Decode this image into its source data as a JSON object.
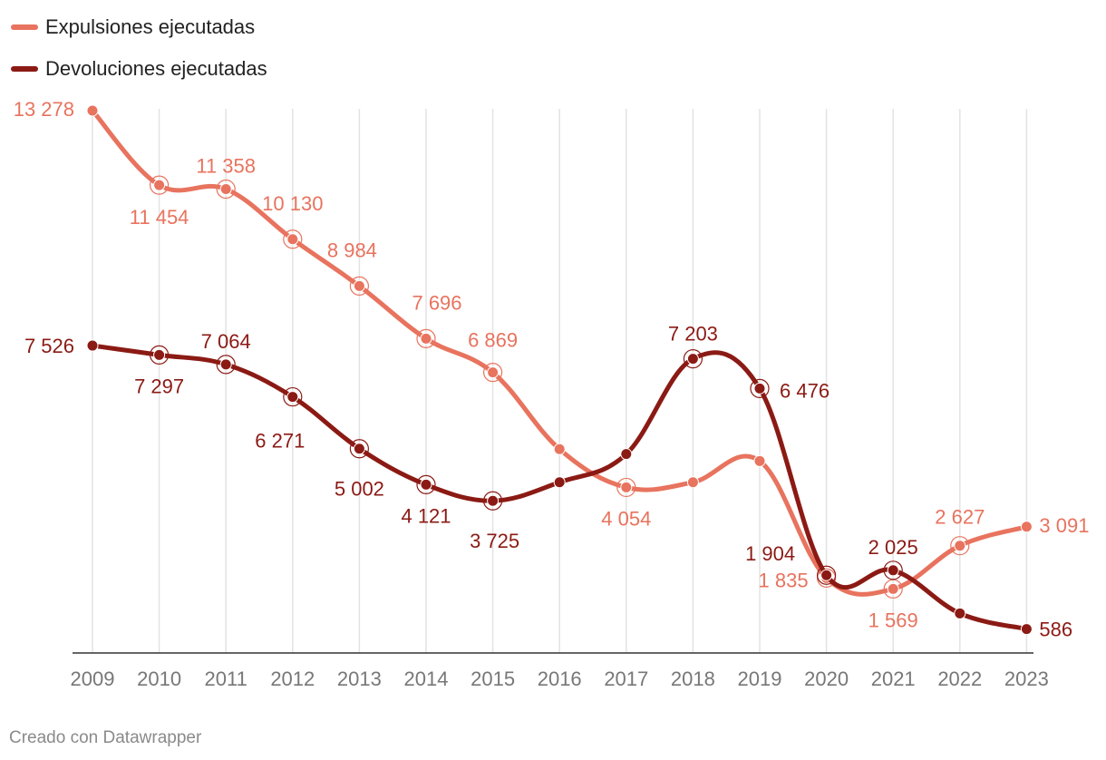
{
  "chart_data": {
    "type": "line",
    "title": "",
    "xlabel": "",
    "ylabel": "",
    "ylim": [
      0,
      13278
    ],
    "grid": "vertical",
    "legend_position": "top-left",
    "x": [
      "2009",
      "2010",
      "2011",
      "2012",
      "2013",
      "2014",
      "2015",
      "2016",
      "2017",
      "2018",
      "2019",
      "2020",
      "2021",
      "2022",
      "2023"
    ],
    "series": [
      {
        "name": "Expulsiones ejecutadas",
        "color": "#e8735e",
        "values": [
          13278,
          11454,
          11358,
          10130,
          8984,
          7696,
          6869,
          4990,
          4054,
          4180,
          4700,
          1835,
          1569,
          2627,
          3091
        ],
        "labels": [
          "13 278",
          "11 454",
          "11 358",
          "10 130",
          "8 984",
          "7 696",
          "6 869",
          "",
          "4 054",
          "",
          "",
          "1 835",
          "1 569",
          "2 627",
          "3 091"
        ]
      },
      {
        "name": "Devoluciones ejecutadas",
        "color": "#8b1a14",
        "values": [
          7526,
          7297,
          7064,
          6271,
          5002,
          4121,
          3725,
          4180,
          4870,
          7203,
          6476,
          1904,
          2025,
          970,
          586
        ],
        "labels": [
          "7 526",
          "7 297",
          "7 064",
          "6 271",
          "5 002",
          "4 121",
          "3 725",
          "",
          "",
          "7 203",
          "6 476",
          "1 904",
          "2 025",
          "",
          "586"
        ]
      }
    ]
  },
  "legend": {
    "items": [
      {
        "label": "Expulsiones ejecutadas",
        "color": "#e8735e"
      },
      {
        "label": "Devoluciones ejecutadas",
        "color": "#8b1a14"
      }
    ]
  },
  "footer": {
    "credit": "Creado con Datawrapper"
  }
}
